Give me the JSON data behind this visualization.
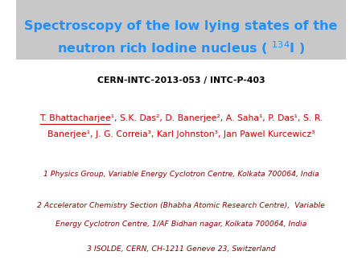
{
  "title_line1": "Spectroscopy of the low lying states of the",
  "title_line2": "neutron rich Iodine nucleus ( $^{134}$I )",
  "title_color": "#1E90FF",
  "title_bg_color": "#C8C8C8",
  "cern_ref": "CERN-INTC-2013-053 / INTC-P-403",
  "cern_ref_color": "#000000",
  "author_line1": "T. Bhattacharjee¹, S.K. Das², D. Banerjee², A. Saha¹, P. Das¹, S. R.",
  "author_line2": "Banerjee¹, J. G. Correia³, Karl Johnston³, Jan Pawel Kurcewicz³",
  "authors_color": "#CC0000",
  "affil1": "1 Physics Group, Variable Energy Cyclotron Centre, Kolkata 700064, India",
  "affil2_line1": "2 Accelerator Chemistry Section (Bhabha Atomic Research Centre),  Variable",
  "affil2_line2": "Energy Cyclotron Centre, 1/AF Bidhan nagar, Kolkata 700064, India",
  "affil3": "3 ISOLDE, CERN, CH-1211 Geneve 23, Switzerland",
  "affil_color": "#8B0000",
  "bg_color": "#FFFFFF",
  "fig_width": 4.5,
  "fig_height": 3.38
}
